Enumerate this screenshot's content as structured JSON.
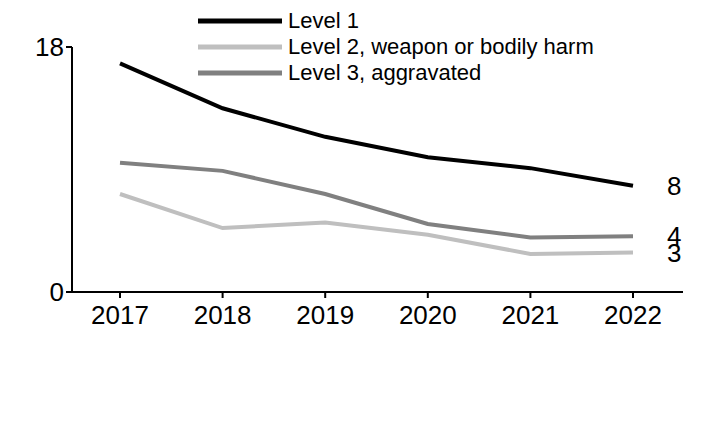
{
  "chart_data": {
    "type": "line",
    "categories": [
      "2017",
      "2018",
      "2019",
      "2020",
      "2021",
      "2022"
    ],
    "series": [
      {
        "name": "Level 1",
        "color": "#000000",
        "values": [
          16.8,
          13.5,
          11.4,
          9.9,
          9.1,
          7.8
        ],
        "value_labels": [
          null,
          null,
          null,
          null,
          null,
          "8"
        ]
      },
      {
        "name": "Level 2, weapon or bodily harm",
        "color": "#bfbfbf",
        "values": [
          7.2,
          4.7,
          5.1,
          4.2,
          2.8,
          2.9
        ],
        "value_labels": [
          null,
          null,
          null,
          null,
          null,
          "3"
        ]
      },
      {
        "name": "Level 3, aggravated",
        "color": "#808080",
        "values": [
          9.5,
          8.9,
          7.2,
          5.0,
          4.0,
          4.1
        ],
        "value_labels": [
          null,
          null,
          null,
          null,
          null,
          "4"
        ]
      }
    ],
    "ylim": [
      0,
      18
    ],
    "yticks": [
      0,
      18
    ],
    "grid": false,
    "legend": "top"
  }
}
